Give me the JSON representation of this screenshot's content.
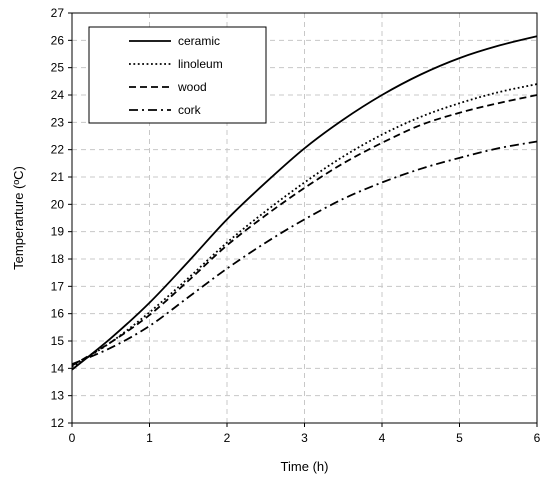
{
  "chart_data": {
    "type": "line",
    "title": "",
    "xlabel": "Time (h)",
    "ylabel": "Temperarture (ºC)",
    "xlim": [
      0,
      6
    ],
    "ylim": [
      12,
      27
    ],
    "xticks": [
      0,
      1,
      2,
      3,
      4,
      5,
      6
    ],
    "yticks": [
      12,
      13,
      14,
      15,
      16,
      17,
      18,
      19,
      20,
      21,
      22,
      23,
      24,
      25,
      26,
      27
    ],
    "grid": true,
    "legend_position": "top-left",
    "x": [
      0,
      0.5,
      1,
      1.5,
      2,
      2.5,
      3,
      3.5,
      4,
      4.5,
      5,
      5.5,
      6
    ],
    "series": [
      {
        "name": "ceramic",
        "line_style": "solid",
        "values": [
          13.95,
          15.1,
          16.4,
          17.9,
          19.45,
          20.8,
          22.05,
          23.1,
          24.0,
          24.75,
          25.35,
          25.8,
          26.15
        ]
      },
      {
        "name": "linoleum",
        "line_style": "dotted",
        "values": [
          14.05,
          14.95,
          16.05,
          17.3,
          18.6,
          19.75,
          20.8,
          21.75,
          22.55,
          23.2,
          23.7,
          24.1,
          24.4
        ]
      },
      {
        "name": "wood",
        "line_style": "dashed",
        "values": [
          14.1,
          14.95,
          15.95,
          17.2,
          18.5,
          19.6,
          20.6,
          21.5,
          22.25,
          22.9,
          23.35,
          23.7,
          24.0
        ]
      },
      {
        "name": "cork",
        "line_style": "dashdot",
        "values": [
          14.15,
          14.75,
          15.55,
          16.6,
          17.65,
          18.6,
          19.45,
          20.2,
          20.8,
          21.3,
          21.7,
          22.05,
          22.3
        ]
      }
    ]
  }
}
